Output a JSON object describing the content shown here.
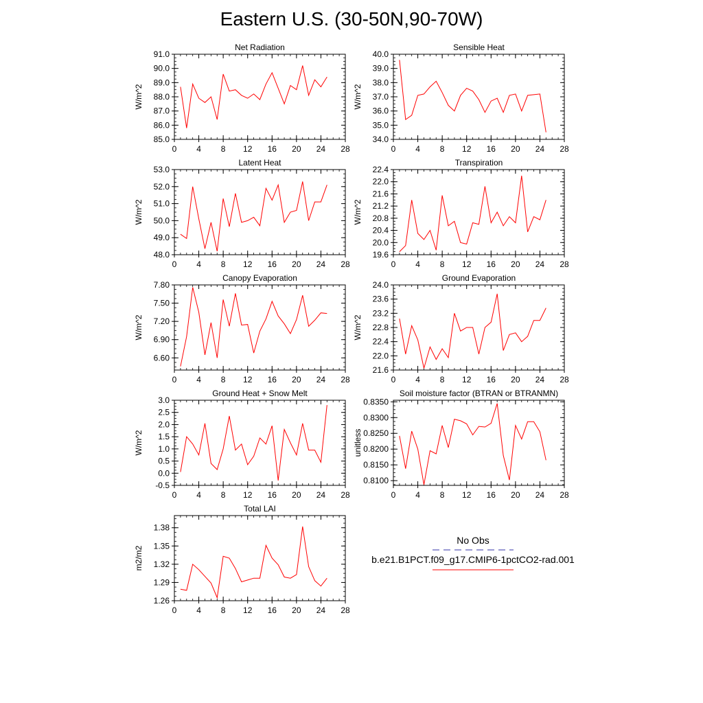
{
  "figure": {
    "title": "Eastern U.S. (30-50N,90-70W)"
  },
  "legend": {
    "obs_label": "No Obs",
    "obs_color": "#3333aa",
    "model_label": "b.e21.B1PCT.f09_g17.CMIP6-1pctCO2-rad.001",
    "model_color": "#ff0000"
  },
  "chart_data": [
    {
      "type": "line",
      "title": "Net Radiation",
      "ylabel": "W/m^2",
      "xlim": [
        0,
        28
      ],
      "ylim": [
        85,
        91
      ],
      "xticks": [
        0,
        4,
        8,
        12,
        16,
        20,
        24,
        28
      ],
      "yticks": [
        85,
        86,
        87,
        88,
        89,
        90,
        91
      ],
      "ytick_decimals": 1,
      "series": [
        {
          "color": "#ff0000",
          "x": [
            1,
            2,
            3,
            4,
            5,
            6,
            7,
            8,
            9,
            10,
            11,
            12,
            13,
            14,
            15,
            16,
            17,
            18,
            19,
            20,
            21,
            22,
            23,
            24,
            25
          ],
          "y": [
            88.7,
            85.8,
            88.9,
            87.9,
            87.6,
            88.0,
            86.4,
            89.6,
            88.4,
            88.5,
            88.1,
            87.9,
            88.2,
            87.8,
            88.9,
            89.7,
            88.6,
            87.5,
            88.8,
            88.5,
            90.2,
            88.1,
            89.2,
            88.7,
            89.4
          ]
        }
      ]
    },
    {
      "type": "line",
      "title": "Sensible Heat",
      "ylabel": "W/m^2",
      "xlim": [
        0,
        28
      ],
      "ylim": [
        34,
        40
      ],
      "xticks": [
        0,
        4,
        8,
        12,
        16,
        20,
        24,
        28
      ],
      "yticks": [
        34,
        35,
        36,
        37,
        38,
        39,
        40
      ],
      "ytick_decimals": 1,
      "series": [
        {
          "color": "#ff0000",
          "x": [
            1,
            2,
            3,
            4,
            5,
            6,
            7,
            8,
            9,
            10,
            11,
            12,
            13,
            14,
            15,
            16,
            17,
            18,
            19,
            20,
            21,
            22,
            23,
            24,
            25
          ],
          "y": [
            39.6,
            35.4,
            35.7,
            37.1,
            37.2,
            37.7,
            38.1,
            37.3,
            36.4,
            36.0,
            37.1,
            37.6,
            37.4,
            36.8,
            35.9,
            36.7,
            36.9,
            35.9,
            37.1,
            37.2,
            36.0,
            37.1,
            37.15,
            37.2,
            34.5
          ]
        }
      ]
    },
    {
      "type": "line",
      "title": "Latent Heat",
      "ylabel": "W/m^2",
      "xlim": [
        0,
        28
      ],
      "ylim": [
        48,
        53
      ],
      "xticks": [
        0,
        4,
        8,
        12,
        16,
        20,
        24,
        28
      ],
      "yticks": [
        48,
        49,
        50,
        51,
        52,
        53
      ],
      "ytick_decimals": 1,
      "series": [
        {
          "color": "#ff0000",
          "x": [
            1,
            2,
            3,
            4,
            5,
            6,
            7,
            8,
            9,
            10,
            11,
            12,
            13,
            14,
            15,
            16,
            17,
            18,
            19,
            20,
            21,
            22,
            23,
            24,
            25
          ],
          "y": [
            49.2,
            48.95,
            52.0,
            50.1,
            48.35,
            49.9,
            48.2,
            51.3,
            49.65,
            51.6,
            49.9,
            50.0,
            50.2,
            49.7,
            51.9,
            51.2,
            52.1,
            49.9,
            50.5,
            50.6,
            52.3,
            50.0,
            51.1,
            51.1,
            52.1
          ]
        }
      ]
    },
    {
      "type": "line",
      "title": "Transpiration",
      "ylabel": "W/m^2",
      "xlim": [
        0,
        28
      ],
      "ylim": [
        19.6,
        22.4
      ],
      "xticks": [
        0,
        4,
        8,
        12,
        16,
        20,
        24,
        28
      ],
      "yticks": [
        19.6,
        20.0,
        20.4,
        20.8,
        21.2,
        21.6,
        22.0,
        22.4
      ],
      "ytick_decimals": 1,
      "series": [
        {
          "color": "#ff0000",
          "x": [
            1,
            2,
            3,
            4,
            5,
            6,
            7,
            8,
            9,
            10,
            11,
            12,
            13,
            14,
            15,
            16,
            17,
            18,
            19,
            20,
            21,
            22,
            23,
            24,
            25
          ],
          "y": [
            19.7,
            19.9,
            21.4,
            20.3,
            20.1,
            20.4,
            19.75,
            21.55,
            20.55,
            20.7,
            20.0,
            19.95,
            20.65,
            20.6,
            21.85,
            20.65,
            21.0,
            20.55,
            20.85,
            20.65,
            22.2,
            20.35,
            20.85,
            20.75,
            21.4
          ]
        }
      ]
    },
    {
      "type": "line",
      "title": "Canopy Evaporation",
      "ylabel": "W/m^2",
      "xlim": [
        0,
        28
      ],
      "ylim": [
        6.4,
        7.8
      ],
      "xticks": [
        0,
        4,
        8,
        12,
        16,
        20,
        24,
        28
      ],
      "yticks": [
        6.6,
        6.9,
        7.2,
        7.5,
        7.8
      ],
      "ytick_decimals": 2,
      "series": [
        {
          "color": "#ff0000",
          "x": [
            1,
            2,
            3,
            4,
            5,
            6,
            7,
            8,
            9,
            10,
            11,
            12,
            13,
            14,
            15,
            16,
            17,
            18,
            19,
            20,
            21,
            22,
            23,
            24,
            25
          ],
          "y": [
            6.46,
            6.95,
            7.76,
            7.35,
            6.65,
            7.18,
            6.6,
            7.56,
            7.12,
            7.66,
            7.14,
            7.15,
            6.68,
            7.04,
            7.24,
            7.53,
            7.29,
            7.16,
            7.0,
            7.23,
            7.63,
            7.12,
            7.22,
            7.34,
            7.33
          ]
        }
      ]
    },
    {
      "type": "line",
      "title": "Ground Evaporation",
      "ylabel": "W/m^2",
      "xlim": [
        0,
        28
      ],
      "ylim": [
        21.6,
        24.0
      ],
      "xticks": [
        0,
        4,
        8,
        12,
        16,
        20,
        24,
        28
      ],
      "yticks": [
        21.6,
        22.0,
        22.4,
        22.8,
        23.2,
        23.6,
        24.0
      ],
      "ytick_decimals": 1,
      "series": [
        {
          "color": "#ff0000",
          "x": [
            1,
            2,
            3,
            4,
            5,
            6,
            7,
            8,
            9,
            10,
            11,
            12,
            13,
            14,
            15,
            16,
            17,
            18,
            19,
            20,
            21,
            22,
            23,
            24,
            25
          ],
          "y": [
            23.05,
            22.05,
            22.85,
            22.45,
            21.65,
            22.25,
            21.9,
            22.2,
            21.95,
            23.2,
            22.7,
            22.8,
            22.8,
            22.05,
            22.8,
            22.95,
            23.75,
            22.15,
            22.6,
            22.65,
            22.4,
            22.55,
            23.0,
            23.0,
            23.35
          ]
        }
      ]
    },
    {
      "type": "line",
      "title": "Ground Heat + Snow Melt",
      "ylabel": "W/m^2",
      "xlim": [
        0,
        28
      ],
      "ylim": [
        -0.5,
        3.0
      ],
      "xticks": [
        0,
        4,
        8,
        12,
        16,
        20,
        24,
        28
      ],
      "yticks": [
        -0.5,
        0.0,
        0.5,
        1.0,
        1.5,
        2.0,
        2.5,
        3.0
      ],
      "ytick_decimals": 1,
      "series": [
        {
          "color": "#ff0000",
          "x": [
            1,
            2,
            3,
            4,
            5,
            6,
            7,
            8,
            9,
            10,
            11,
            12,
            13,
            14,
            15,
            16,
            17,
            18,
            19,
            20,
            21,
            22,
            23,
            24,
            25
          ],
          "y": [
            0.05,
            1.5,
            1.2,
            0.75,
            2.05,
            0.4,
            0.15,
            1.0,
            2.35,
            0.95,
            1.2,
            0.35,
            0.7,
            1.45,
            1.2,
            1.95,
            -0.3,
            1.8,
            1.25,
            0.75,
            2.05,
            0.95,
            0.95,
            0.45,
            2.8
          ]
        }
      ]
    },
    {
      "type": "line",
      "title": "Soil moisture factor (BTRAN or BTRANMN)",
      "ylabel": "unitless",
      "xlim": [
        0,
        28
      ],
      "ylim": [
        0.8085,
        0.8355
      ],
      "xticks": [
        0,
        4,
        8,
        12,
        16,
        20,
        24,
        28
      ],
      "yticks": [
        0.81,
        0.815,
        0.82,
        0.825,
        0.83,
        0.835
      ],
      "ytick_decimals": 4,
      "series": [
        {
          "color": "#ff0000",
          "x": [
            1,
            2,
            3,
            4,
            5,
            6,
            7,
            8,
            9,
            10,
            11,
            12,
            13,
            14,
            15,
            16,
            17,
            18,
            19,
            20,
            21,
            22,
            23,
            24,
            25
          ],
          "y": [
            0.8242,
            0.8138,
            0.8257,
            0.82,
            0.8087,
            0.8195,
            0.8185,
            0.8275,
            0.8205,
            0.8295,
            0.829,
            0.828,
            0.8245,
            0.8272,
            0.827,
            0.8282,
            0.8345,
            0.818,
            0.8102,
            0.8275,
            0.8232,
            0.8287,
            0.8287,
            0.8255,
            0.8165
          ]
        }
      ]
    },
    {
      "type": "line",
      "title": "Total LAI",
      "ylabel": "m2/m2",
      "xlim": [
        0,
        28
      ],
      "ylim": [
        1.26,
        1.4
      ],
      "xticks": [
        0,
        4,
        8,
        12,
        16,
        20,
        24,
        28
      ],
      "yticks": [
        1.26,
        1.29,
        1.32,
        1.35,
        1.38
      ],
      "ytick_decimals": 2,
      "series": [
        {
          "color": "#ff0000",
          "x": [
            1,
            2,
            3,
            4,
            5,
            6,
            7,
            8,
            9,
            10,
            11,
            12,
            13,
            14,
            15,
            16,
            17,
            18,
            19,
            20,
            21,
            22,
            23,
            24,
            25
          ],
          "y": [
            1.279,
            1.277,
            1.32,
            1.311,
            1.3,
            1.289,
            1.265,
            1.333,
            1.33,
            1.313,
            1.291,
            1.294,
            1.297,
            1.297,
            1.351,
            1.33,
            1.319,
            1.299,
            1.297,
            1.303,
            1.382,
            1.316,
            1.293,
            1.284,
            1.297
          ]
        }
      ]
    }
  ]
}
